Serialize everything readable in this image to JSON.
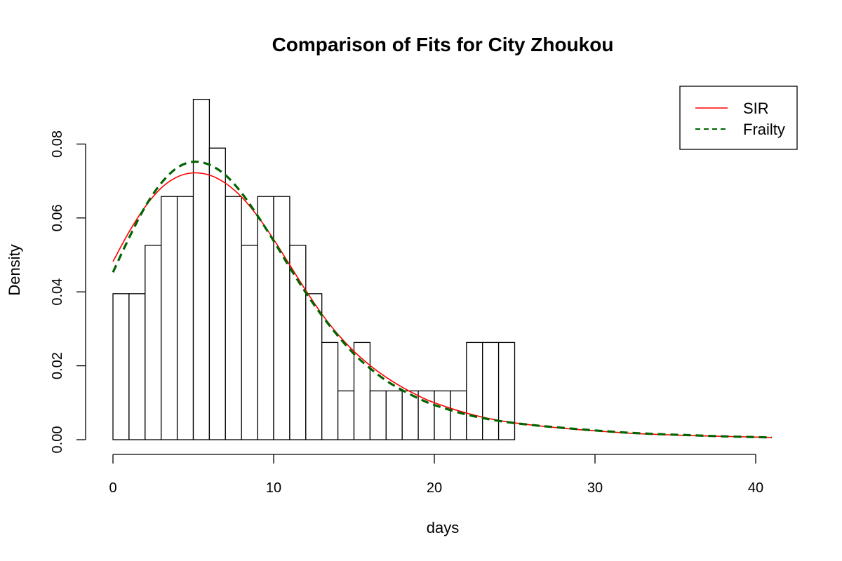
{
  "chart_data": {
    "type": "bar",
    "title": "Comparison of Fits for City Zhoukou",
    "xlabel": "days",
    "ylabel": "Density",
    "xlim": [
      0,
      41
    ],
    "ylim": [
      0,
      0.09
    ],
    "x_ticks": [
      0,
      10,
      20,
      30,
      40
    ],
    "x_tick_labels": [
      "0",
      "10",
      "20",
      "30",
      "40"
    ],
    "y_ticks": [
      0,
      0.02,
      0.04,
      0.06,
      0.08
    ],
    "y_tick_labels": [
      "0.00",
      "0.02",
      "0.04",
      "0.06",
      "0.08"
    ],
    "histogram": {
      "bin_edges": [
        0,
        1,
        2,
        3,
        4,
        5,
        6,
        7,
        8,
        9,
        10,
        11,
        12,
        13,
        14,
        15,
        16,
        17,
        18,
        19,
        20,
        21,
        22,
        23,
        24,
        25
      ],
      "density": [
        0.0395,
        0.0395,
        0.0526,
        0.0658,
        0.0658,
        0.0921,
        0.0789,
        0.0658,
        0.0526,
        0.0658,
        0.0658,
        0.0526,
        0.0395,
        0.0263,
        0.0132,
        0.0263,
        0.0132,
        0.0132,
        0.0132,
        0.0132,
        0.0132,
        0.0132,
        0.0263,
        0.0263,
        0.0263
      ]
    },
    "series": [
      {
        "name": "SIR",
        "color": "#ff0000",
        "dash": "solid",
        "x": [
          0,
          1,
          2,
          3,
          4,
          5,
          6,
          7,
          8,
          9,
          10,
          11,
          12,
          13,
          14,
          15,
          16,
          17,
          18,
          19,
          20,
          22,
          24,
          26,
          28,
          30,
          32,
          34,
          36,
          38,
          40,
          41
        ],
        "y": [
          0.0482,
          0.0562,
          0.063,
          0.0681,
          0.0711,
          0.0722,
          0.0716,
          0.0694,
          0.0657,
          0.0605,
          0.0542,
          0.0473,
          0.0404,
          0.034,
          0.0285,
          0.0239,
          0.0201,
          0.0169,
          0.0142,
          0.0119,
          0.01,
          0.0072,
          0.0052,
          0.004,
          0.0031,
          0.0024,
          0.0018,
          0.0014,
          0.0011,
          0.0009,
          0.0007,
          0.0006
        ]
      },
      {
        "name": "Frailty",
        "color": "#006400",
        "dash": "dashed",
        "x": [
          0,
          1,
          2,
          3,
          4,
          5,
          6,
          7,
          8,
          9,
          10,
          11,
          12,
          13,
          14,
          15,
          16,
          17,
          18,
          19,
          20,
          22,
          24,
          26,
          28,
          30,
          32,
          34,
          36,
          38,
          40,
          41
        ],
        "y": [
          0.0453,
          0.0546,
          0.063,
          0.0694,
          0.0736,
          0.0752,
          0.0744,
          0.0716,
          0.0668,
          0.0606,
          0.0538,
          0.0466,
          0.0398,
          0.0336,
          0.0281,
          0.0232,
          0.0193,
          0.016,
          0.0134,
          0.0112,
          0.0094,
          0.0068,
          0.0051,
          0.004,
          0.0032,
          0.0025,
          0.0019,
          0.0015,
          0.0012,
          0.0009,
          0.0007,
          0.0006
        ]
      }
    ],
    "legend": {
      "placement": "top-right",
      "entries": [
        "SIR",
        "Frailty"
      ]
    }
  }
}
